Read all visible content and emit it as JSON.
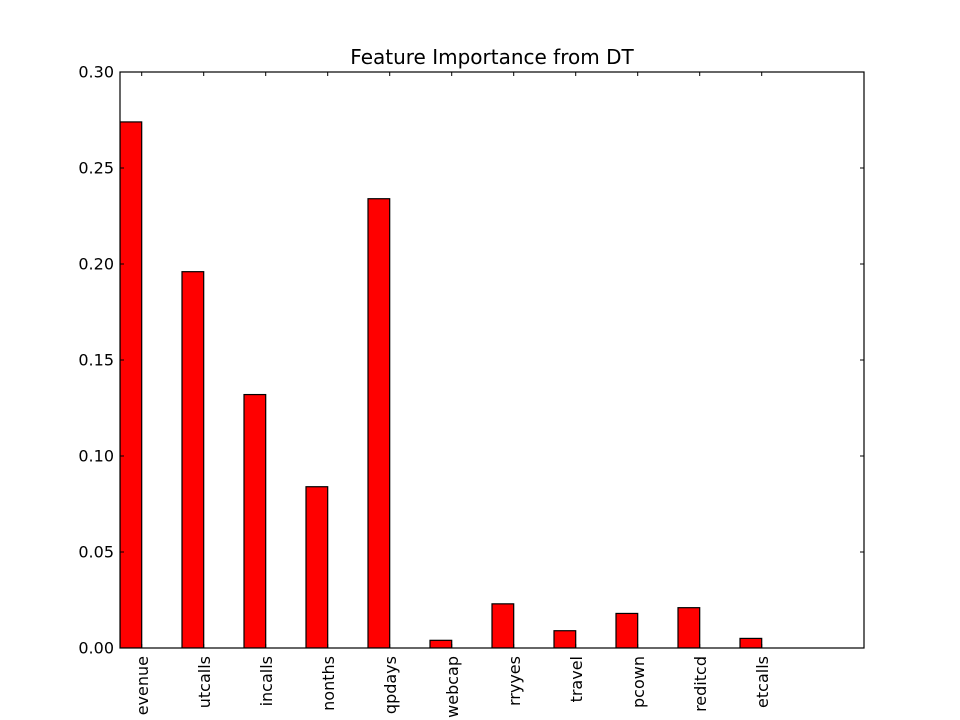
{
  "chart_data": {
    "type": "bar",
    "title": "Feature Importance from DT",
    "xlabel": "",
    "ylabel": "",
    "ylim": [
      0,
      0.3
    ],
    "yticks": [
      "0.00",
      "0.05",
      "0.10",
      "0.15",
      "0.20",
      "0.25",
      "0.30"
    ],
    "grid": false,
    "bar_color": "#ff0000",
    "categories": [
      "evenue",
      "utcalls",
      "incalls",
      "nonths",
      "qpdays",
      "webcap",
      "rryyes",
      "travel",
      "pcown",
      "reditcd",
      "etcalls"
    ],
    "values": [
      0.274,
      0.196,
      0.132,
      0.084,
      0.234,
      0.004,
      0.023,
      0.009,
      0.018,
      0.021,
      0.005
    ]
  }
}
